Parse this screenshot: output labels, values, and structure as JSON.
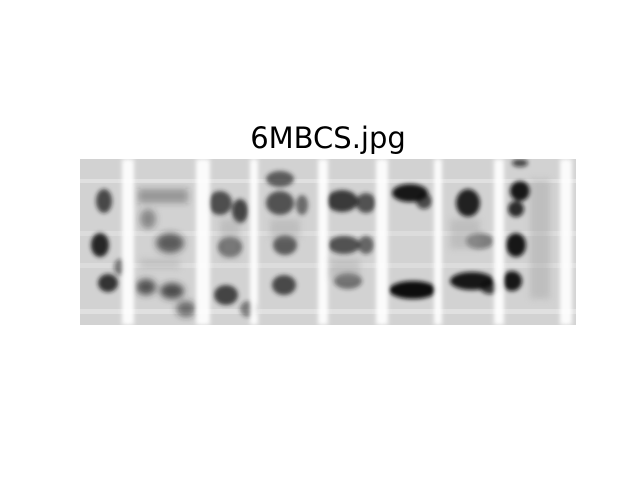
{
  "figure": {
    "title": "6MBCS.jpg"
  },
  "image": {
    "description_name": "captcha-image",
    "background_color": "#d3d3d3",
    "ink_color": "#111111"
  }
}
